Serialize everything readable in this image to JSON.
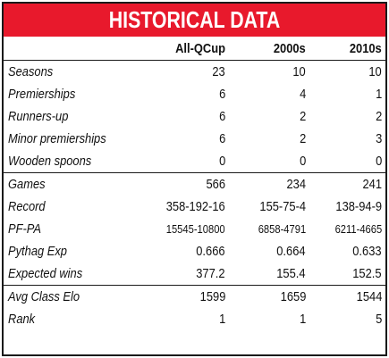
{
  "title": "HISTORICAL DATA",
  "columns": [
    "",
    "All-QCup",
    "2000s",
    "2010s"
  ],
  "rows": [
    {
      "label": "Seasons",
      "values": [
        "23",
        "10",
        "10"
      ]
    },
    {
      "label": "Premierships",
      "values": [
        "6",
        "4",
        "1"
      ]
    },
    {
      "label": "Runners-up",
      "values": [
        "6",
        "2",
        "2"
      ]
    },
    {
      "label": "Minor premierships",
      "values": [
        "6",
        "2",
        "3"
      ]
    },
    {
      "label": "Wooden spoons",
      "values": [
        "0",
        "0",
        "0"
      ]
    },
    {
      "label": "Games",
      "values": [
        "566",
        "234",
        "241"
      ]
    },
    {
      "label": "Record",
      "values": [
        "358-192-16",
        "155-75-4",
        "138-94-9"
      ]
    },
    {
      "label": "PF-PA",
      "values": [
        "15545-10800",
        "6858-4791",
        "6211-4665"
      ]
    },
    {
      "label": "Pythag Exp",
      "values": [
        "0.666",
        "0.664",
        "0.633"
      ]
    },
    {
      "label": "Expected wins",
      "values": [
        "377.2",
        "155.4",
        "152.5"
      ]
    },
    {
      "label": "Avg Class Elo",
      "values": [
        "1599",
        "1659",
        "1544"
      ]
    },
    {
      "label": "Rank",
      "values": [
        "1",
        "1",
        "5"
      ]
    }
  ],
  "colors": {
    "title_bg": "#e8192c",
    "title_text": "#ffffff",
    "border": "#1a1a1a"
  }
}
